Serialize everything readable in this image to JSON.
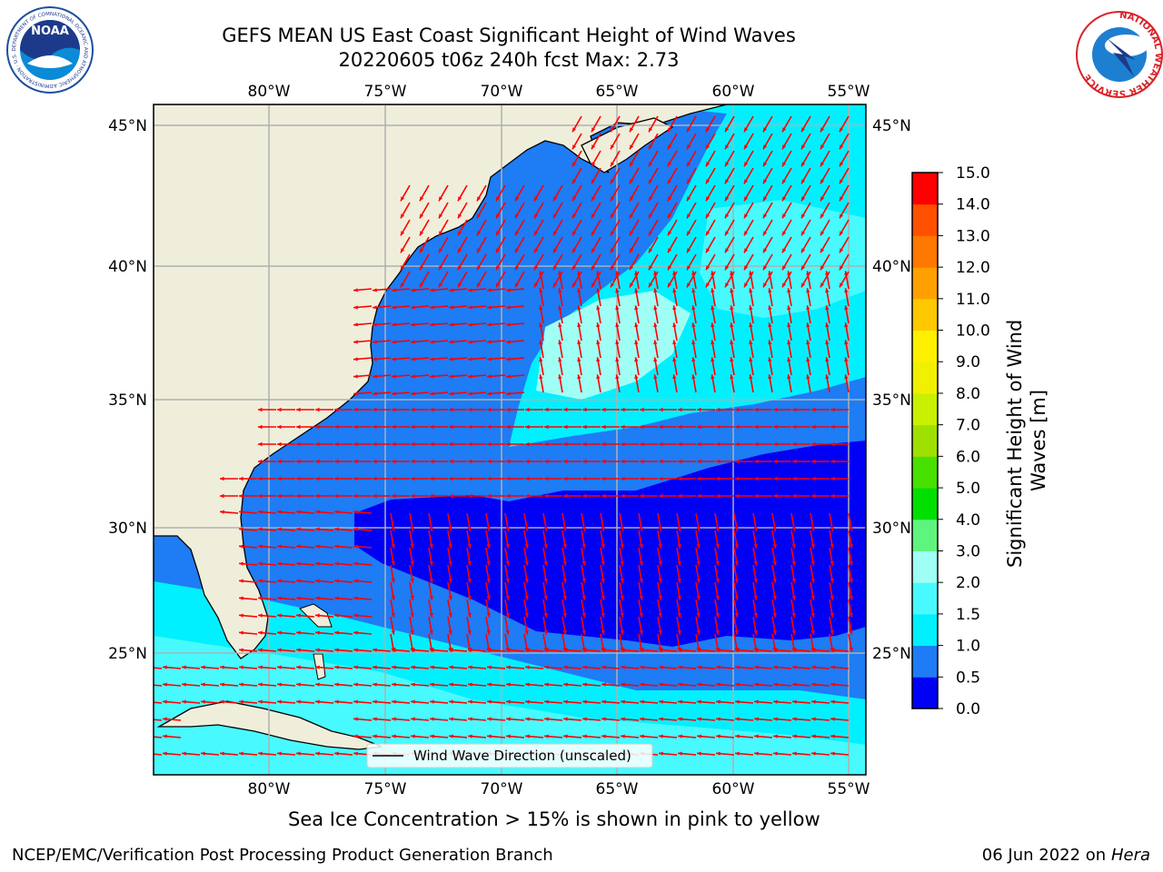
{
  "header": {
    "title_line1": "GEFS MEAN US East Coast Significant Height of Wind Waves",
    "title_line2": "20220605 t06z 240h fcst   Max: 2.73"
  },
  "map": {
    "lon_labels": [
      "80°W",
      "75°W",
      "70°W",
      "65°W",
      "60°W",
      "55°W"
    ],
    "lat_labels": [
      "45°N",
      "40°N",
      "35°N",
      "30°N",
      "25°N"
    ],
    "legend_label": "Wind Wave Direction (unscaled)",
    "land_color": "#efeedb",
    "vector_color": "#ff0000"
  },
  "colorbar": {
    "label": "Significant Height of Wind Waves [m]",
    "ticks": [
      "0.0",
      "0.5",
      "1.0",
      "1.5",
      "2.0",
      "3.0",
      "4.0",
      "5.0",
      "6.0",
      "7.0",
      "8.0",
      "9.0",
      "10.0",
      "11.0",
      "12.0",
      "13.0",
      "14.0",
      "15.0"
    ],
    "colors": [
      "#0000f5",
      "#1e7cf5",
      "#00f0ff",
      "#48faff",
      "#a0fff5",
      "#5ef57e",
      "#00e000",
      "#48e000",
      "#a0e000",
      "#c8f000",
      "#f0f000",
      "#fff000",
      "#ffc800",
      "#ffa000",
      "#ff7800",
      "#ff5000",
      "#ff0000"
    ]
  },
  "notes": {
    "sea_ice": "Sea Ice Concentration > 15% is shown in pink to yellow",
    "branch": "NCEP/EMC/Verification Post Processing Product Generation Branch",
    "date": "06 Jun 2022 on",
    "host": "Hera"
  },
  "logos": {
    "noaa_text": "NOAA",
    "noaa_ring": "NATIONAL OCEANIC AND ATMOSPHERIC ADMINISTRATION · U.S. DEPARTMENT OF COMMERCE",
    "nws_ring": "NATIONAL WEATHER SERVICE"
  }
}
